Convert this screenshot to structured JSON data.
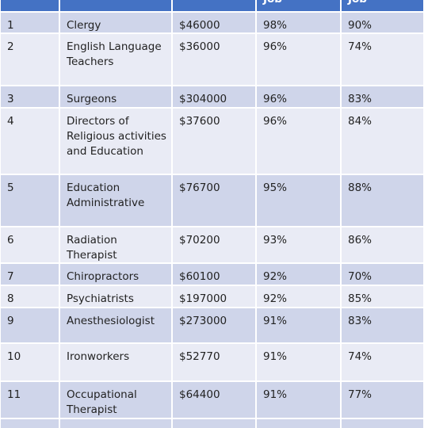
{
  "table": {
    "header": [
      "Job",
      "Job"
    ],
    "rows": [
      [
        "1",
        "Clergy",
        "$46000",
        "98%",
        "90%"
      ],
      [
        "2",
        "English Language Teachers",
        "$36000",
        "96%",
        "74%"
      ],
      [
        "3",
        "Surgeons",
        "$304000",
        "96%",
        "83%"
      ],
      [
        "4",
        "Directors of Religious activities and Education",
        "$37600",
        "96%",
        "84%"
      ],
      [
        "5",
        "Education Administrative",
        "$76700",
        "95%",
        "88%"
      ],
      [
        "6",
        "Radiation Therapist",
        "$70200",
        "93%",
        "86%"
      ],
      [
        "7",
        "Chiropractors",
        "$60100",
        "92%",
        "70%"
      ],
      [
        "8",
        "Psychiatrists",
        "$197000",
        "92%",
        "85%"
      ],
      [
        "9",
        "Anesthesiologist",
        "$273000",
        "91%",
        "83%"
      ],
      [
        "10",
        "Ironworkers",
        "$52770",
        "91%",
        "74%"
      ],
      [
        "11",
        "Occupational Therapist",
        "$64400",
        "91%",
        "77%"
      ]
    ]
  }
}
